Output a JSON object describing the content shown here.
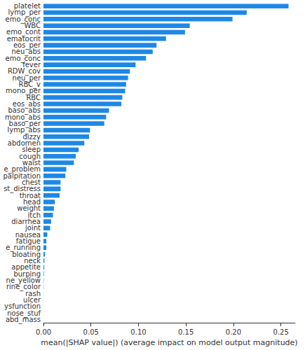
{
  "chart_data": {
    "type": "bar",
    "orientation": "horizontal",
    "xlabel": "mean(|SHAP value|) (average impact on model output magnitude)",
    "categories": [
      "platelet",
      "lymp_per",
      "emo_conc",
      "WBC",
      "emo_cont",
      "ematocrit",
      "eos_per",
      "neu_abs",
      "emo_conc",
      "fever",
      "RDW_cov",
      "neu_per",
      "RBC_v",
      "mono_per",
      "RBC",
      "eos_abs",
      "baso_abs",
      "mono_abs",
      "baso_per",
      "lymp_abs",
      "dizzy",
      "abdomen",
      "sleep",
      "cough",
      "waist",
      "e_problem",
      "palpitation",
      "chest",
      "st_distress",
      "throat",
      "head",
      "weight",
      "itch",
      "diarrhea",
      "joint",
      "nausea",
      "fatigue",
      "e_running",
      "bloating",
      "neck",
      "appetite",
      "burping",
      "ne_yellow",
      "rine_color",
      "rash",
      "ulcer",
      "ysfunction",
      "nose_stuf",
      "abd_mass"
    ],
    "values": [
      0.258,
      0.214,
      0.199,
      0.154,
      0.149,
      0.129,
      0.119,
      0.115,
      0.108,
      0.097,
      0.091,
      0.089,
      0.087,
      0.086,
      0.083,
      0.082,
      0.069,
      0.066,
      0.064,
      0.049,
      0.048,
      0.043,
      0.037,
      0.034,
      0.032,
      0.024,
      0.023,
      0.018,
      0.018,
      0.017,
      0.012,
      0.011,
      0.01,
      0.008,
      0.007,
      0.004,
      0.003,
      0.003,
      0.0015,
      0.001,
      0.0008,
      0.0005,
      0.0003,
      0.0002,
      0.0001,
      0,
      0,
      0,
      0
    ],
    "color": "#1e88e5",
    "xlim": [
      0,
      0.265
    ],
    "xticks": [
      {
        "value": 0,
        "label": "0.00"
      },
      {
        "value": 0.05,
        "label": "0.05"
      },
      {
        "value": 0.1,
        "label": "0.10"
      },
      {
        "value": 0.15,
        "label": "0.15"
      },
      {
        "value": 0.2,
        "label": "0.20"
      },
      {
        "value": 0.25,
        "label": "0.25"
      }
    ],
    "grid": false
  }
}
